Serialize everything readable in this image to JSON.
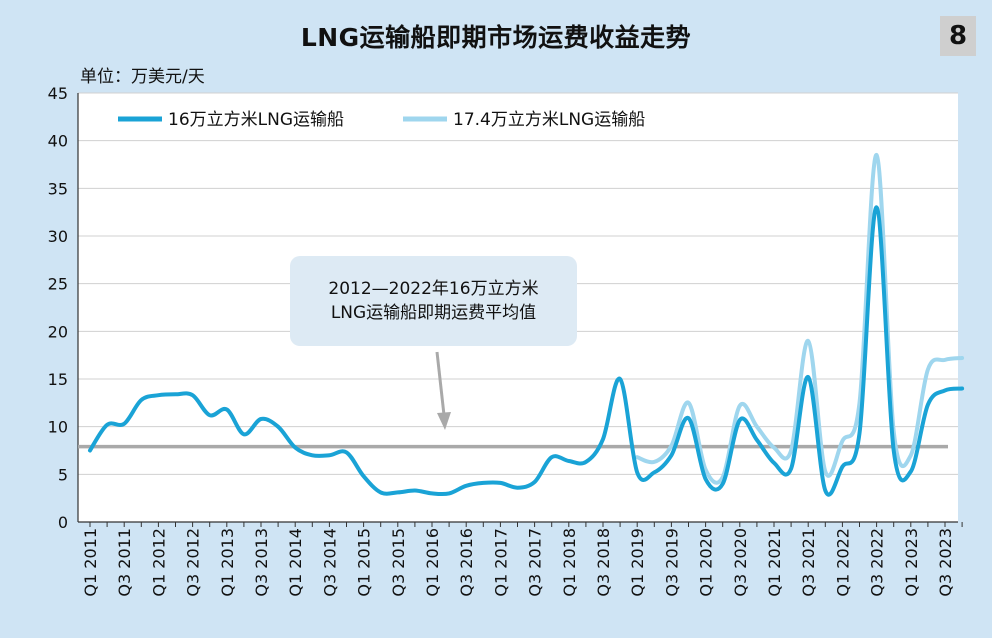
{
  "header": {
    "title": "LNG运输船即期市场运费收益走势",
    "badge": "8",
    "unit": "单位：万美元/天"
  },
  "annotation": {
    "line1": "2012—2022年16万立方米",
    "line2": "LNG运输船即期运费平均值"
  },
  "colors": {
    "series1": "#1aa3d6",
    "series2": "#9fd6ee",
    "average": "#a9a9a9",
    "arrow": "#a9a9a9"
  },
  "chart_data": {
    "type": "line",
    "title": "LNG运输船即期市场运费收益走势",
    "ylabel": "单位：万美元/天",
    "ylim": [
      0,
      45
    ],
    "yticks": [
      0,
      5,
      10,
      15,
      20,
      25,
      30,
      35,
      40,
      45
    ],
    "grid": true,
    "legend_position": "top-left",
    "x": [
      "Q1 2011",
      "Q2 2011",
      "Q3 2011",
      "Q4 2011",
      "Q1 2012",
      "Q2 2012",
      "Q3 2012",
      "Q4 2012",
      "Q1 2013",
      "Q2 2013",
      "Q3 2013",
      "Q4 2013",
      "Q1 2014",
      "Q2 2014",
      "Q3 2014",
      "Q4 2014",
      "Q1 2015",
      "Q2 2015",
      "Q3 2015",
      "Q4 2015",
      "Q1 2016",
      "Q2 2016",
      "Q3 2016",
      "Q4 2016",
      "Q1 2017",
      "Q2 2017",
      "Q3 2017",
      "Q4 2017",
      "Q1 2018",
      "Q2 2018",
      "Q3 2018",
      "Q4 2018",
      "Q1 2019",
      "Q2 2019",
      "Q3 2019",
      "Q4 2019",
      "Q1 2020",
      "Q2 2020",
      "Q3 2020",
      "Q4 2020",
      "Q1 2021",
      "Q2 2021",
      "Q3 2021",
      "Q4 2021",
      "Q1 2022",
      "Q2 2022",
      "Q3 2022",
      "Q4 2022",
      "Q1 2023",
      "Q2 2023",
      "Q3 2023",
      "Q4 2023"
    ],
    "xticklabels": [
      "Q1 2011",
      "Q3 2011",
      "Q1 2012",
      "Q3 2012",
      "Q1 2013",
      "Q3 2013",
      "Q1 2014",
      "Q3 2014",
      "Q1 2015",
      "Q3 2015",
      "Q1 2016",
      "Q3 2016",
      "Q1 2017",
      "Q3 2017",
      "Q1 2018",
      "Q3 2018",
      "Q1 2019",
      "Q3 2019",
      "Q1 2020",
      "Q3 2020",
      "Q1 2021",
      "Q3 2021",
      "Q1 2022",
      "Q3 2022",
      "Q1 2023",
      "Q3 2023"
    ],
    "series": [
      {
        "name": "16万立方米LNG运输船",
        "color": "#1aa3d6",
        "values": [
          7.5,
          10.2,
          10.3,
          12.8,
          13.3,
          13.4,
          13.3,
          11.2,
          11.8,
          9.2,
          10.8,
          10.0,
          7.8,
          7.0,
          7.0,
          7.3,
          4.8,
          3.1,
          3.1,
          3.3,
          3.0,
          3.0,
          3.8,
          4.1,
          4.1,
          3.6,
          4.2,
          6.8,
          6.4,
          6.3,
          8.7,
          15.0,
          5.2,
          5.2,
          7.0,
          10.9,
          4.5,
          4.0,
          10.7,
          8.6,
          6.2,
          5.6,
          15.2,
          3.3,
          5.8,
          9.3,
          33.0,
          7.5,
          5.3,
          12.3,
          13.8,
          14.0
        ]
      },
      {
        "name": "17.4万立方米LNG运输船",
        "color": "#9fd6ee",
        "values": [
          null,
          null,
          null,
          null,
          null,
          null,
          null,
          null,
          null,
          null,
          null,
          null,
          null,
          null,
          null,
          null,
          null,
          null,
          null,
          null,
          null,
          null,
          null,
          null,
          null,
          null,
          null,
          null,
          null,
          null,
          null,
          null,
          6.8,
          6.3,
          8.0,
          12.5,
          5.5,
          4.7,
          12.2,
          10.0,
          7.8,
          7.5,
          19.0,
          5.3,
          8.5,
          12.5,
          38.5,
          9.5,
          7.0,
          16.0,
          17.0,
          17.2
        ]
      }
    ],
    "average_line": {
      "label": "2012—2022年16万立方米LNG运输船即期运费平均值",
      "value": 7.9
    }
  }
}
